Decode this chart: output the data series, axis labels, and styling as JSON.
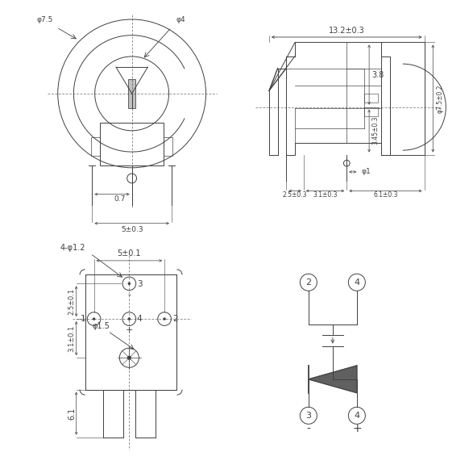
{
  "bg": "#ffffff",
  "lc": "#404040",
  "tc": "#404040",
  "lw": 0.7,
  "tl_phi75": "φ7.5",
  "tl_phi4": "φ4",
  "tl_07": "0.7",
  "tl_5pm03": "5±0.3",
  "tr_132": "13.2±0.3",
  "tr_38": "3.8",
  "tr_345": "3.45±0.3",
  "tr_phi75pm02": "φ7.5±0.2",
  "tr_phi1": "φ1",
  "tr_25": "2.5±0.3",
  "tr_31": "3.1±0.3",
  "tr_61": "6.1±0.3",
  "bl_holes": "4-φ1.2",
  "bl_5pm01": "5±0.1",
  "bl_31pm01": "3.1±0.1",
  "bl_25pm01": "2.5±0.1",
  "bl_phi15": "φ1.5",
  "bl_61": "6.1",
  "br_minus": "-",
  "br_plus": "+"
}
